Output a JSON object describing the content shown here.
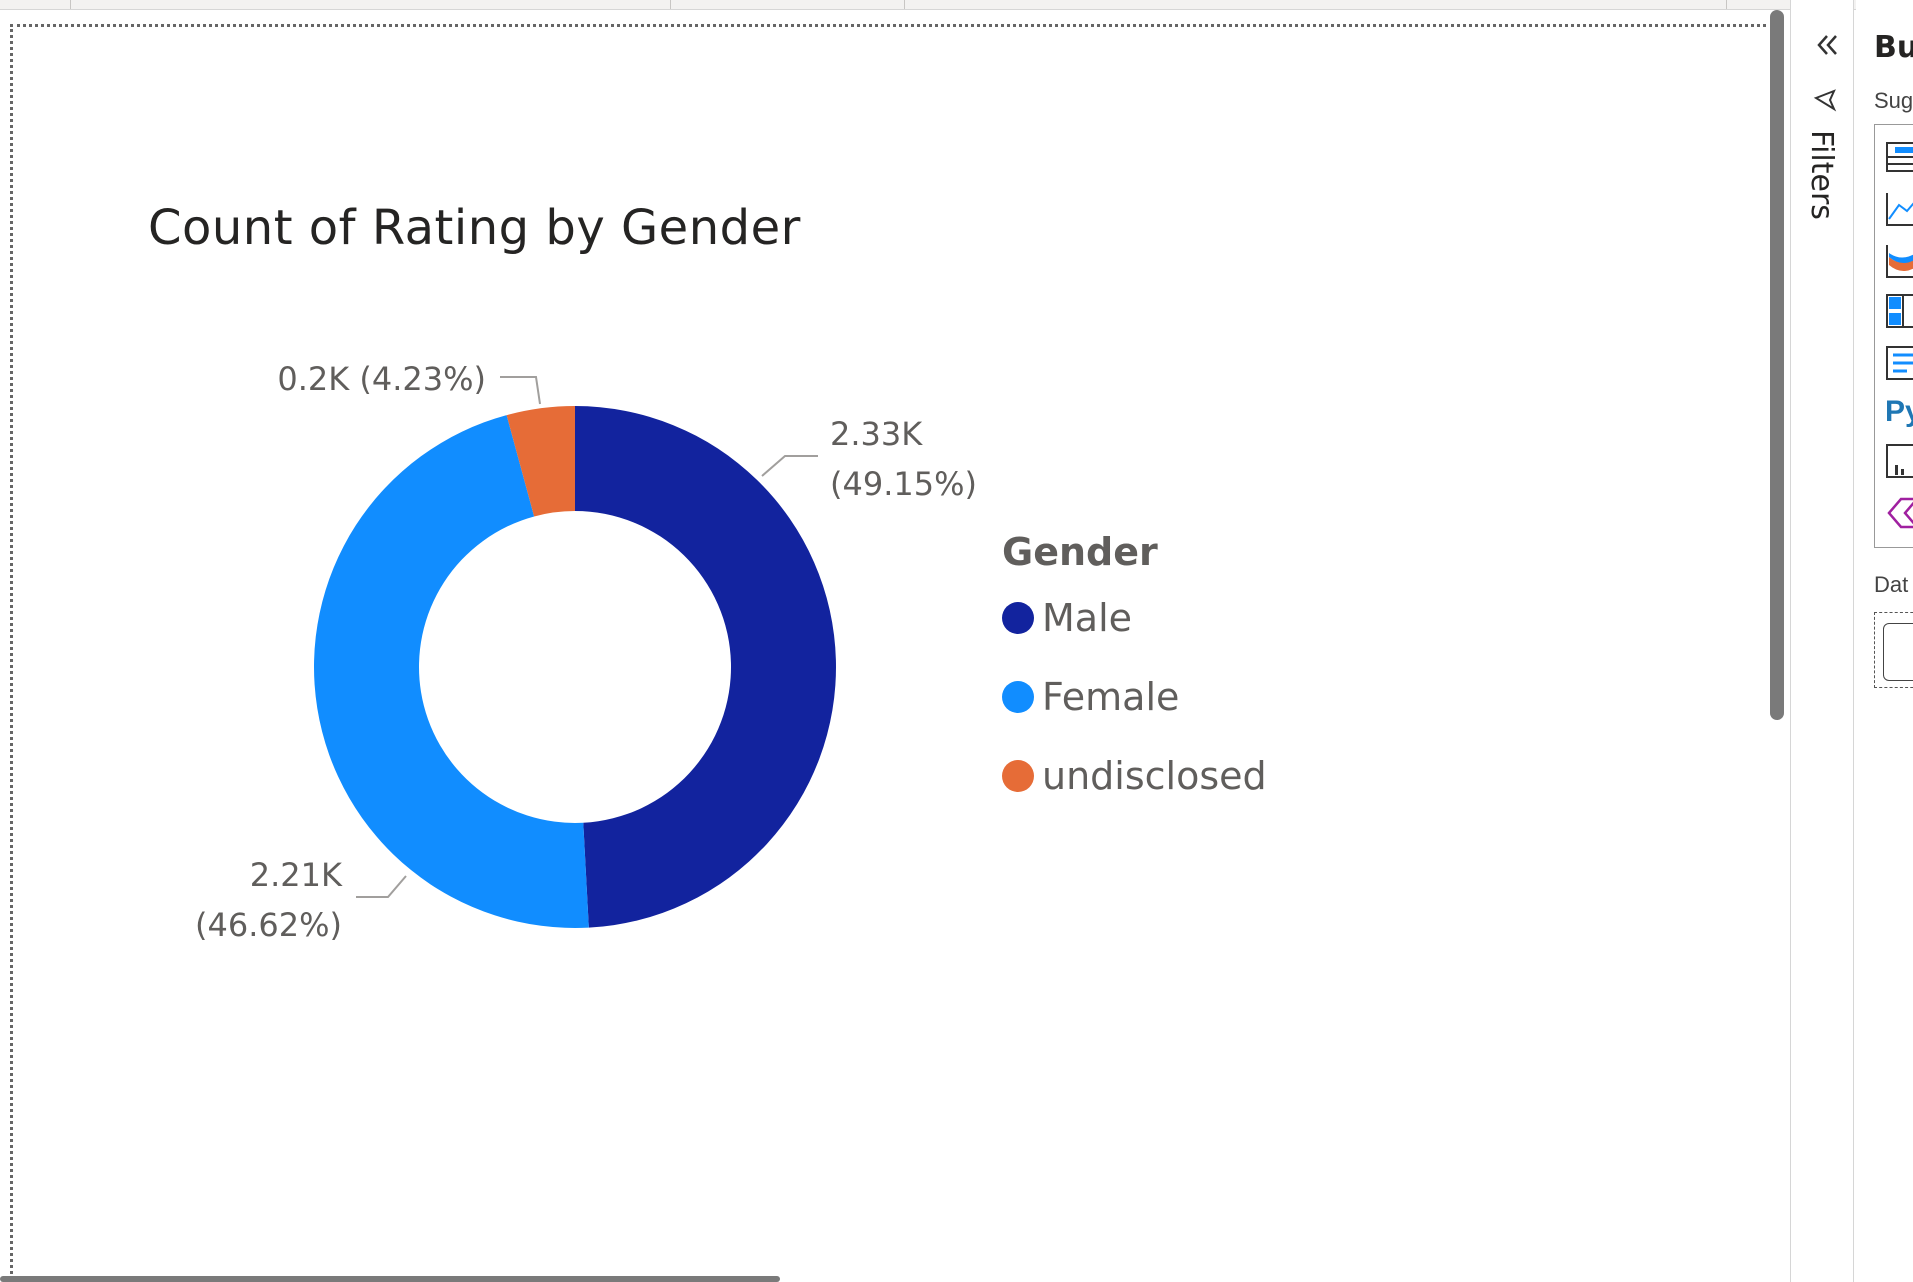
{
  "ribbon": {
    "tabs": [
      "",
      "",
      "",
      "",
      ""
    ]
  },
  "chart_data": {
    "type": "pie",
    "subtype": "donut",
    "title": "Count of Rating by Gender",
    "legend_title": "Gender",
    "legend_position": "right",
    "categories": [
      "Male",
      "Female",
      "undisclosed"
    ],
    "values": [
      2330,
      2210,
      200
    ],
    "percentages": [
      49.15,
      46.62,
      4.23
    ],
    "colors": [
      "#12239e",
      "#118dff",
      "#e66c37"
    ],
    "data_labels": [
      {
        "line1": "2.33K",
        "line2": "(49.15%)"
      },
      {
        "line1": "2.21K",
        "line2": "(46.62%)"
      },
      {
        "line1": "0.2K (4.23%)",
        "line2": ""
      }
    ]
  },
  "filters_pane": {
    "label": "Filters",
    "icons": [
      "collapse-chevrons-icon",
      "filter-icon"
    ]
  },
  "build_pane": {
    "title": "Bu",
    "subtitle": "Sug",
    "data_label": "Dat",
    "viz_icon_text": "Py"
  }
}
